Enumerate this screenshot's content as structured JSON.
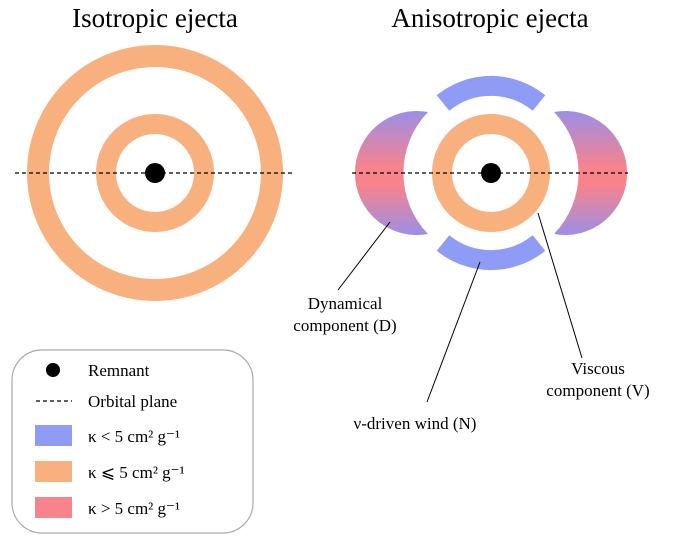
{
  "titles": {
    "left": "Isotropic ejecta",
    "right": "Anisotropic ejecta"
  },
  "labels": {
    "dynamical": [
      "Dynamical",
      "component (D)"
    ],
    "viscous": [
      "Viscous",
      "component (V)"
    ],
    "wind": [
      "ν-driven wind (N)"
    ]
  },
  "legend": {
    "items": [
      {
        "label": "Remnant"
      },
      {
        "label": "Orbital plane"
      },
      {
        "label": "κ < 5 cm² g⁻¹",
        "color": "#8f9cf6"
      },
      {
        "label": "κ ⩽ 5 cm² g⁻¹",
        "color": "#f9b07f"
      },
      {
        "label": "κ > 5 cm² g⁻¹",
        "color": "#f7838c"
      }
    ]
  }
}
